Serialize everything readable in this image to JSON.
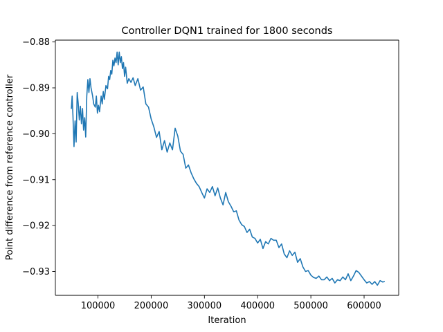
{
  "chart_data": {
    "type": "line",
    "title": "Controller DQN1 trained for 1800 seconds",
    "xlabel": "Iteration",
    "ylabel": "Point difference from reference controller",
    "xlim": [
      20000,
      665000
    ],
    "ylim": [
      -0.9352,
      -0.8796
    ],
    "xticks": [
      100000,
      200000,
      300000,
      400000,
      500000,
      600000
    ],
    "xtick_labels": [
      "100000",
      "200000",
      "300000",
      "400000",
      "500000",
      "600000"
    ],
    "yticks": [
      -0.88,
      -0.89,
      -0.9,
      -0.91,
      -0.92,
      -0.93
    ],
    "ytick_labels": [
      "−0.88",
      "−0.89",
      "−0.90",
      "−0.91",
      "−0.92",
      "−0.93"
    ],
    "grid": false,
    "series": [
      {
        "color": "#1f77b4",
        "x": [
          50000,
          51500,
          53000,
          55000,
          57000,
          59000,
          61000,
          63000,
          65000,
          67000,
          69000,
          71000,
          73000,
          75000,
          77000,
          79000,
          81000,
          83000,
          85000,
          87000,
          90000,
          92000,
          95000,
          97000,
          99000,
          101000,
          103000,
          106000,
          108000,
          110000,
          112000,
          115000,
          118000,
          120000,
          122000,
          124000,
          126000,
          128000,
          130000,
          132000,
          134000,
          136000,
          138000,
          140000,
          142000,
          144000,
          146000,
          148000,
          150000,
          152000,
          155000,
          158000,
          162000,
          166000,
          170000,
          175000,
          180000,
          185000,
          190000,
          195000,
          200000,
          205000,
          210000,
          215000,
          220000,
          225000,
          230000,
          235000,
          240000,
          245000,
          250000,
          255000,
          260000,
          265000,
          270000,
          275000,
          280000,
          285000,
          290000,
          295000,
          300000,
          305000,
          310000,
          315000,
          320000,
          325000,
          330000,
          335000,
          340000,
          345000,
          350000,
          355000,
          360000,
          365000,
          370000,
          375000,
          380000,
          385000,
          390000,
          395000,
          400000,
          405000,
          410000,
          415000,
          420000,
          425000,
          430000,
          435000,
          440000,
          445000,
          450000,
          455000,
          460000,
          465000,
          470000,
          475000,
          480000,
          485000,
          490000,
          495000,
          500000,
          505000,
          510000,
          515000,
          520000,
          525000,
          530000,
          535000,
          540000,
          545000,
          550000,
          555000,
          560000,
          565000,
          570000,
          575000,
          580000,
          585000,
          590000,
          595000,
          600000,
          605000,
          610000,
          615000,
          620000,
          625000,
          630000,
          635000,
          638000
        ],
        "y": [
          -0.8945,
          -0.8918,
          -0.896,
          -0.9028,
          -0.8972,
          -0.9018,
          -0.891,
          -0.8935,
          -0.897,
          -0.894,
          -0.8978,
          -0.8945,
          -0.8992,
          -0.8965,
          -0.9007,
          -0.8918,
          -0.8882,
          -0.891,
          -0.888,
          -0.89,
          -0.8918,
          -0.8935,
          -0.8942,
          -0.8918,
          -0.8955,
          -0.8938,
          -0.8952,
          -0.8918,
          -0.8935,
          -0.8908,
          -0.8925,
          -0.8895,
          -0.8902,
          -0.8875,
          -0.8882,
          -0.8862,
          -0.887,
          -0.884,
          -0.8852,
          -0.8835,
          -0.8845,
          -0.8822,
          -0.885,
          -0.8822,
          -0.8845,
          -0.8832,
          -0.8858,
          -0.8845,
          -0.8875,
          -0.8855,
          -0.889,
          -0.888,
          -0.8888,
          -0.8878,
          -0.8895,
          -0.888,
          -0.8905,
          -0.8898,
          -0.8935,
          -0.8942,
          -0.8968,
          -0.8985,
          -0.9008,
          -0.8995,
          -0.9035,
          -0.9015,
          -0.904,
          -0.902,
          -0.9035,
          -0.8988,
          -0.9005,
          -0.9038,
          -0.9045,
          -0.9075,
          -0.9068,
          -0.9085,
          -0.9098,
          -0.9108,
          -0.9115,
          -0.9128,
          -0.914,
          -0.912,
          -0.9128,
          -0.9115,
          -0.9135,
          -0.9118,
          -0.914,
          -0.9155,
          -0.9128,
          -0.9148,
          -0.9158,
          -0.917,
          -0.9168,
          -0.9188,
          -0.9198,
          -0.9202,
          -0.9215,
          -0.9208,
          -0.9225,
          -0.9228,
          -0.9238,
          -0.923,
          -0.925,
          -0.9235,
          -0.924,
          -0.9228,
          -0.9232,
          -0.9232,
          -0.9248,
          -0.924,
          -0.9262,
          -0.927,
          -0.9255,
          -0.9265,
          -0.9258,
          -0.928,
          -0.9272,
          -0.929,
          -0.93,
          -0.9298,
          -0.9308,
          -0.9313,
          -0.9315,
          -0.931,
          -0.9318,
          -0.9318,
          -0.9312,
          -0.932,
          -0.9315,
          -0.9325,
          -0.9318,
          -0.932,
          -0.9312,
          -0.9318,
          -0.9305,
          -0.932,
          -0.931,
          -0.9298,
          -0.9302,
          -0.931,
          -0.9318,
          -0.9325,
          -0.9322,
          -0.9328,
          -0.9322,
          -0.933,
          -0.932,
          -0.9323,
          -0.9322
        ]
      }
    ]
  }
}
